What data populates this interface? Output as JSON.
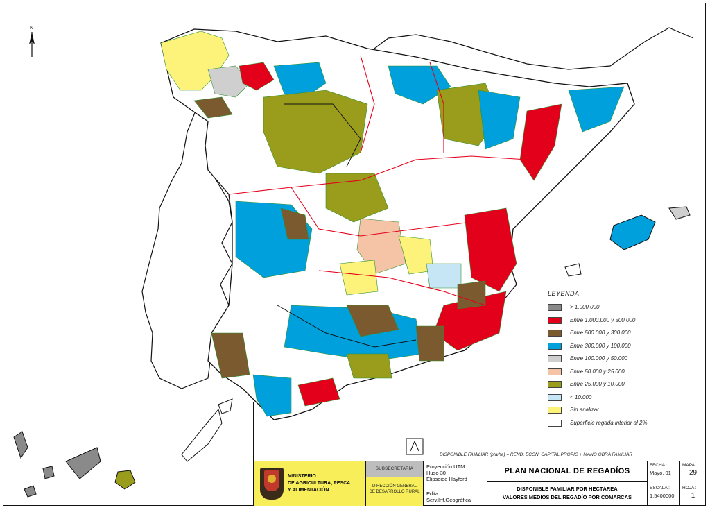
{
  "legend": {
    "title": "LEYENDA",
    "items": [
      {
        "label": "> 1.000.000",
        "color": "#8a8a8a"
      },
      {
        "label": "Entre 1.000.000 y 500.000",
        "color": "#e3001b"
      },
      {
        "label": "Entre 500.000 y 300.000",
        "color": "#7a5a2e"
      },
      {
        "label": "Entre 300.000 y 100.000",
        "color": "#00a0dc"
      },
      {
        "label": "Entre 100.000 y 50.000",
        "color": "#cfcfcf"
      },
      {
        "label": "Entre 50.000 y 25.000",
        "color": "#f5c4a6"
      },
      {
        "label": "Entre 25.000 y 10.000",
        "color": "#9a9d1c"
      },
      {
        "label": "< 10.000",
        "color": "#c6e6f6"
      },
      {
        "label": "Sin analizar",
        "color": "#fdf27a"
      },
      {
        "label": "Superficie regada interior al 2%",
        "color": "#ffffff"
      }
    ]
  },
  "formula": "DISPONIBLE FAMILIAR (pta/ha) = REND. ECON. CAPITAL PROPIO + MANO OBRA FAMILIAR",
  "north_symbol": "north-arrow",
  "title_block": {
    "ministry": [
      "MINISTERIO",
      "DE AGRICULTURA, PESCA",
      "Y ALIMENTACIÓN"
    ],
    "subsecretaria": "SUBSECRETARÍA",
    "direccion": [
      "DIRECCIÓN GENERAL",
      "DE DESARROLLO RURAL"
    ],
    "projection": [
      "Proyección UTM",
      "Huso 30",
      "Elipsoide Hayford"
    ],
    "edita": [
      "Edita :",
      "Serv.Inf.Geográfica"
    ],
    "plan_title": "PLAN NACIONAL DE REGADÍOS",
    "map_subtitle": [
      "DISPONIBLE FAMILIAR POR HECTÁREA",
      "VALORES MEDIOS DEL REGADÍO POR COMARCAS"
    ],
    "fecha_label": "FECHA :",
    "fecha_value": "Mayo, 01",
    "escala_label": "ESCALA :",
    "escala_value": "1:5400000",
    "mapa_label": "MAPA:",
    "mapa_value": "29",
    "hoja_label": "HOJA :",
    "hoja_value": "1"
  },
  "colors": {
    "province_border": "#e3001b",
    "region_border": "#111111",
    "comarca_border": "#2f8f2f"
  }
}
